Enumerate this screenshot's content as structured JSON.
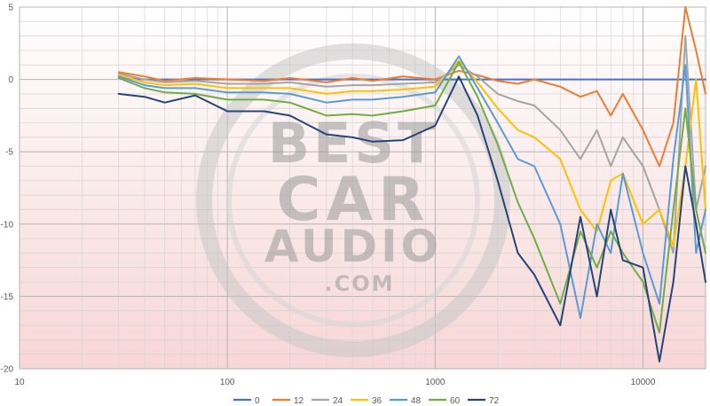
{
  "chart_data": {
    "type": "line",
    "title": "",
    "xlabel": "",
    "ylabel": "",
    "xscale": "log",
    "xlim": [
      10,
      20000
    ],
    "ylim": [
      -20,
      5
    ],
    "x_ticks": [
      "10",
      "100",
      "1000",
      "10000"
    ],
    "y_ticks": [
      "5",
      "0",
      "-5",
      "-10",
      "-15",
      "-20"
    ],
    "grid": "on",
    "legend_position": "bottom",
    "background": "pink gradient",
    "watermark": [
      "BEST",
      "CAR",
      "AUDIO",
      ".COM"
    ],
    "x": [
      30,
      40,
      50,
      70,
      100,
      150,
      200,
      300,
      400,
      500,
      700,
      1000,
      1300,
      1600,
      2000,
      2500,
      3000,
      4000,
      5000,
      6000,
      7000,
      8000,
      10000,
      12000,
      14000,
      16000,
      18000,
      20000
    ],
    "series": [
      {
        "name": "0",
        "color": "#4472c4",
        "values": [
          0.1,
          0.0,
          0.0,
          0.0,
          0.0,
          0.0,
          0.0,
          0.0,
          0.0,
          0.0,
          0.0,
          0.0,
          0.0,
          0.0,
          0.0,
          0.0,
          0.0,
          0.0,
          0.0,
          0.0,
          0.0,
          0.0,
          0.0,
          0.0,
          0.0,
          0.0,
          0.0,
          0.0
        ]
      },
      {
        "name": "12",
        "color": "#ed7d31",
        "values": [
          0.5,
          0.2,
          -0.1,
          0.1,
          0.0,
          -0.1,
          0.1,
          -0.2,
          0.1,
          -0.1,
          0.2,
          0.0,
          0.6,
          0.3,
          -0.1,
          -0.3,
          0.0,
          -0.5,
          -1.2,
          -0.8,
          -2.5,
          -1.0,
          -3.5,
          -6.0,
          -3.0,
          5.0,
          2.0,
          -1.0
        ]
      },
      {
        "name": "24",
        "color": "#a5a5a5",
        "values": [
          0.4,
          0.0,
          -0.2,
          -0.1,
          -0.3,
          -0.3,
          -0.2,
          -0.5,
          -0.4,
          -0.4,
          -0.3,
          -0.2,
          1.0,
          0.2,
          -1.0,
          -1.5,
          -1.8,
          -3.5,
          -5.5,
          -3.5,
          -6.0,
          -4.0,
          -6.0,
          -9.0,
          -12.0,
          3.0,
          -9.0,
          -6.0
        ]
      },
      {
        "name": "36",
        "color": "#ffc000",
        "values": [
          0.3,
          -0.2,
          -0.4,
          -0.3,
          -0.6,
          -0.6,
          -0.6,
          -1.0,
          -0.8,
          -0.8,
          -0.7,
          -0.5,
          1.3,
          -0.2,
          -2.0,
          -3.5,
          -4.0,
          -5.5,
          -9.0,
          -10.5,
          -7.0,
          -6.5,
          -10.0,
          -9.0,
          -11.5,
          -6.0,
          0.0,
          -9.0
        ]
      },
      {
        "name": "48",
        "color": "#5b9bd5",
        "values": [
          0.2,
          -0.4,
          -0.6,
          -0.6,
          -0.9,
          -0.9,
          -1.0,
          -1.6,
          -1.4,
          -1.4,
          -1.2,
          -0.9,
          1.6,
          -0.6,
          -3.0,
          -5.5,
          -6.0,
          -10.0,
          -16.5,
          -10.0,
          -12.0,
          -6.5,
          -12.0,
          -15.5,
          -5.5,
          1.0,
          -12.0,
          -9.0
        ]
      },
      {
        "name": "60",
        "color": "#70ad47",
        "values": [
          0.1,
          -0.6,
          -0.9,
          -1.0,
          -1.4,
          -1.4,
          -1.6,
          -2.5,
          -2.4,
          -2.5,
          -2.2,
          -1.8,
          1.2,
          -1.2,
          -4.5,
          -8.5,
          -11.0,
          -15.5,
          -10.5,
          -13.0,
          -10.5,
          -12.0,
          -14.0,
          -17.5,
          -9.0,
          -2.0,
          -9.0,
          -12.0
        ]
      },
      {
        "name": "72",
        "color": "#264478",
        "values": [
          -1.0,
          -1.2,
          -1.6,
          -1.1,
          -2.2,
          -2.2,
          -2.5,
          -3.8,
          -4.0,
          -4.3,
          -4.2,
          -3.2,
          0.2,
          -2.5,
          -7.0,
          -12.0,
          -13.5,
          -17.0,
          -9.5,
          -15.0,
          -9.0,
          -12.5,
          -13.0,
          -19.5,
          -14.0,
          -6.0,
          -10.0,
          -14.0
        ]
      }
    ]
  }
}
